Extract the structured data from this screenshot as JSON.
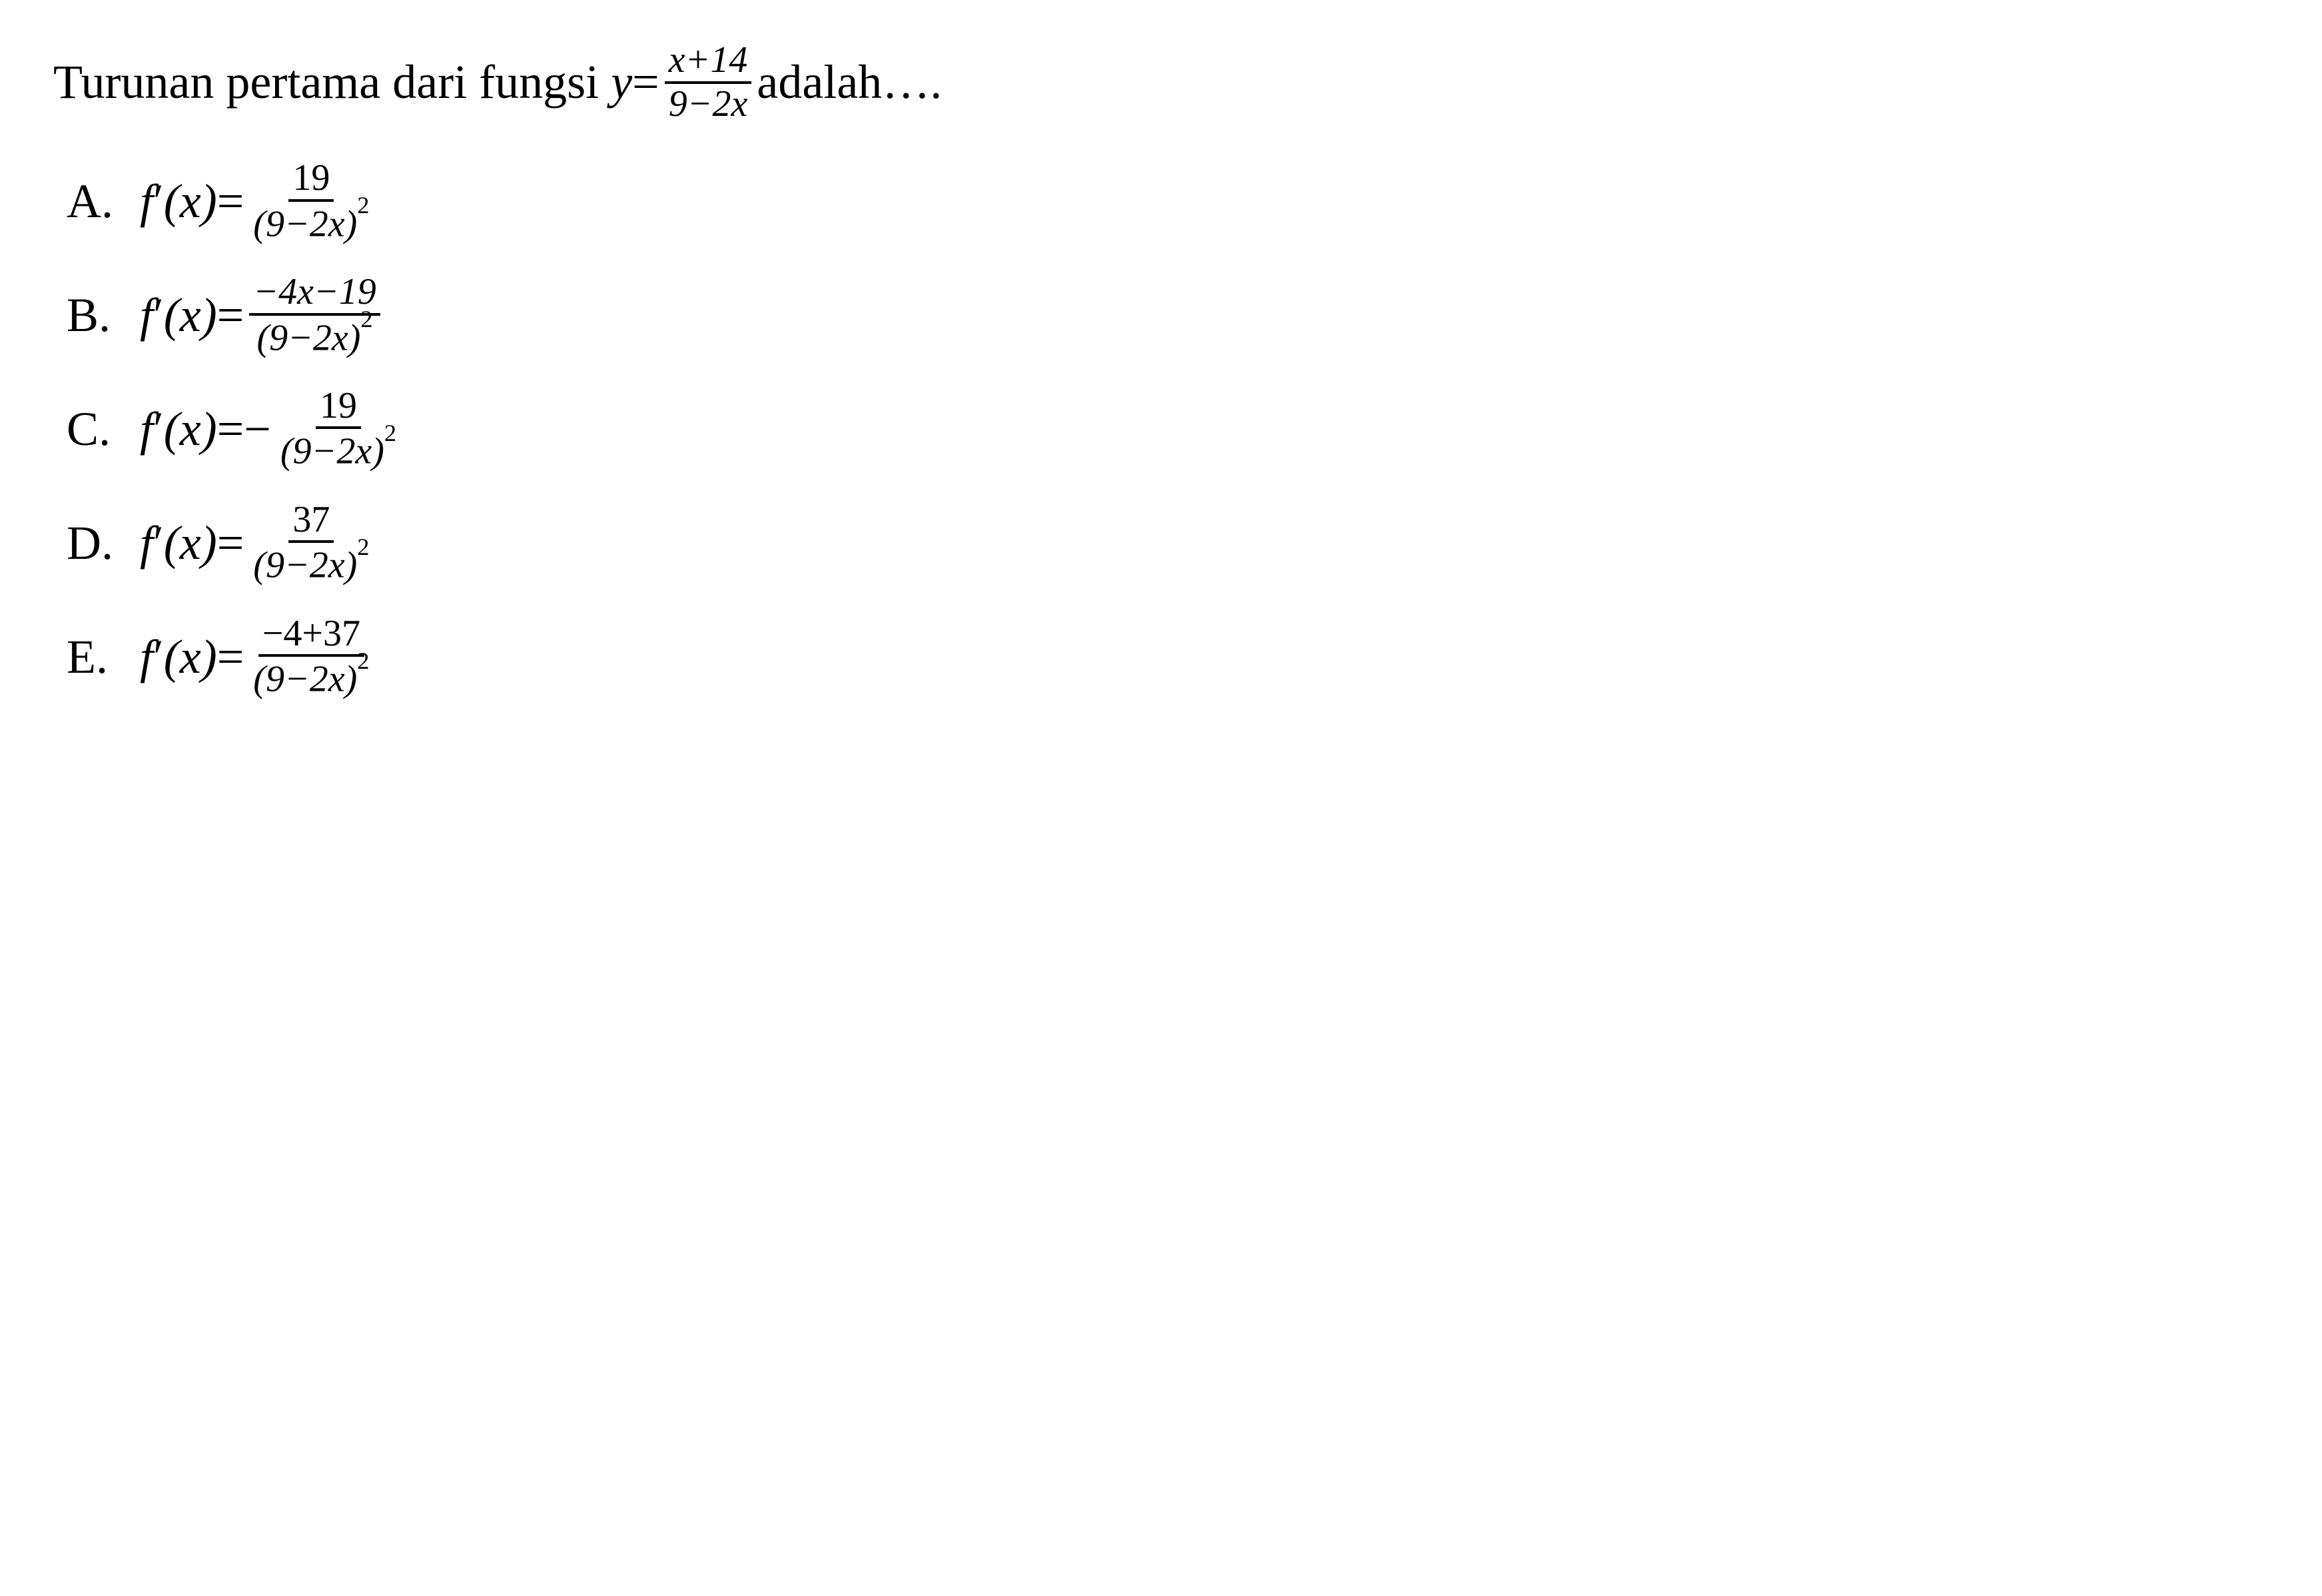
{
  "colors": {
    "background": "#ffffff",
    "text": "#000000",
    "rule": "#000000"
  },
  "typography": {
    "font_family": "Times New Roman",
    "question_fontsize": 72,
    "option_fontsize": 72,
    "fraction_fontsize": 56
  },
  "question": {
    "prefix": "Turunan pertama dari fungsi ",
    "variable": "y",
    "equals": " = ",
    "fraction": {
      "numerator": "x+14",
      "denominator": "9−2x"
    },
    "suffix": " adalah…."
  },
  "options": [
    {
      "label": "A.",
      "lhs_func": "f",
      "lhs_prime": "′",
      "lhs_arg": "(x)",
      "equals": " = ",
      "neg_prefix": "",
      "numerator": "19",
      "denominator_pre": "(9−2x)",
      "denominator_exp": "2"
    },
    {
      "label": "B.",
      "lhs_func": "f",
      "lhs_prime": "′",
      "lhs_arg": "(x)",
      "equals": " = ",
      "neg_prefix": "",
      "numerator": "−4x−19",
      "denominator_pre": "(9−2x)",
      "denominator_exp": "2"
    },
    {
      "label": "C.",
      "lhs_func": "f",
      "lhs_prime": "′",
      "lhs_arg": "(x)",
      "equals": " = ",
      "neg_prefix": "− ",
      "numerator": "19",
      "denominator_pre": "(9−2x)",
      "denominator_exp": "2"
    },
    {
      "label": "D.",
      "lhs_func": "f",
      "lhs_prime": "′",
      "lhs_arg": "(x)",
      "equals": " = ",
      "neg_prefix": "",
      "numerator": "37",
      "denominator_pre": "(9−2x)",
      "denominator_exp": "2"
    },
    {
      "label": "E.",
      "lhs_func": "f",
      "lhs_prime": "′",
      "lhs_arg": "(x)",
      "equals": " = ",
      "neg_prefix": "",
      "numerator": "−4+37",
      "denominator_pre": "(9−2x)",
      "denominator_exp": "2"
    }
  ]
}
